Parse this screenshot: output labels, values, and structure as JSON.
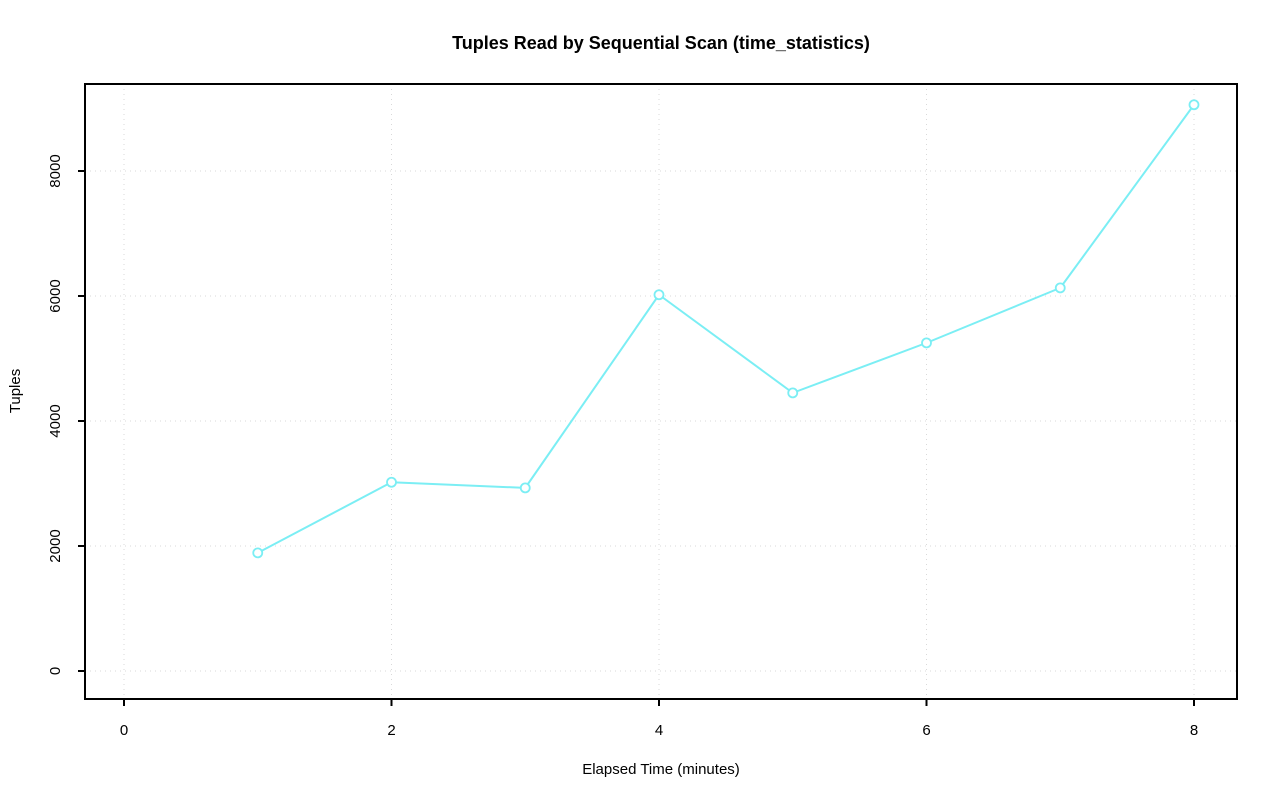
{
  "chart_data": {
    "type": "line",
    "title": "Tuples Read by Sequential Scan (time_statistics)",
    "xlabel": "Elapsed Time (minutes)",
    "ylabel": "Tuples",
    "x": [
      1,
      2,
      3,
      4,
      5,
      6,
      7,
      8
    ],
    "y": [
      1890,
      3020,
      2930,
      6020,
      4450,
      5250,
      6130,
      9060
    ],
    "x_ticks": [
      0,
      2,
      4,
      6,
      8
    ],
    "y_ticks": [
      0,
      2000,
      4000,
      6000,
      8000
    ],
    "xlim": [
      0,
      8
    ],
    "ylim": [
      0,
      9060
    ],
    "grid": true,
    "legend": "none",
    "marker": "open-circle",
    "colors": {
      "series": "#7beef4",
      "grid": "#d9d9d9",
      "axis": "#000000",
      "background": "#ffffff"
    }
  }
}
